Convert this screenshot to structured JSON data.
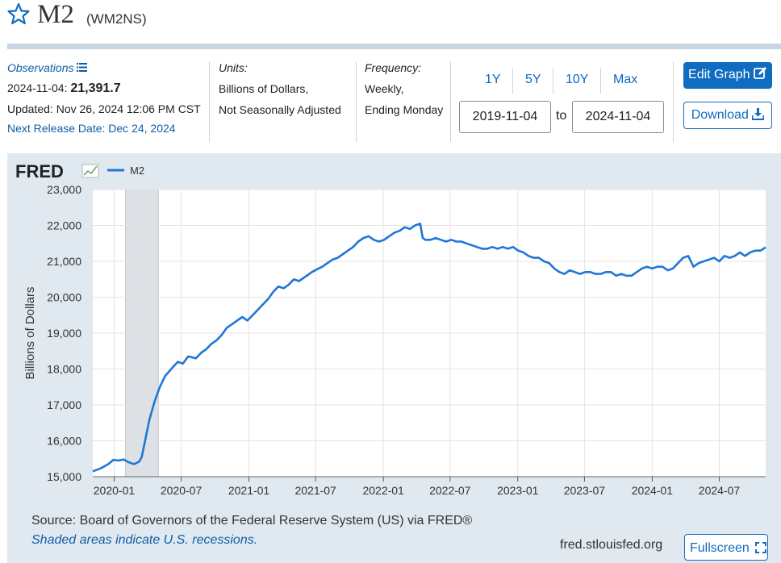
{
  "header": {
    "title": "M2",
    "code": "(WM2NS)"
  },
  "meta": {
    "observations_label": "Observations",
    "obs_date": "2024-11-04:",
    "obs_value": "21,391.7",
    "updated": "Updated: Nov 26, 2024 12:06 PM CST",
    "next_release": "Next Release Date: Dec 24, 2024",
    "units_label": "Units:",
    "units_line1": "Billions of Dollars,",
    "units_line2": "Not Seasonally Adjusted",
    "frequency_label": "Frequency:",
    "frequency_line1": "Weekly,",
    "frequency_line2": "Ending Monday"
  },
  "controls": {
    "range_buttons": [
      "1Y",
      "5Y",
      "10Y",
      "Max"
    ],
    "start_date": "2019-11-04",
    "to_label": "to",
    "end_date": "2024-11-04",
    "edit_graph": "Edit Graph",
    "download": "Download",
    "fullscreen": "Fullscreen"
  },
  "footer": {
    "source": "Source: Board of Governors of the Federal Reserve System (US) via FRED®",
    "shaded_note": "Shaded areas indicate U.S. recessions.",
    "site": "fred.stlouisfed.org"
  },
  "colors": {
    "series": "#1f77d6",
    "accent": "#0f6cc1",
    "panel_bg": "#e1e9f0",
    "recession": "#dde1e5"
  },
  "chart_data": {
    "type": "line",
    "logo_text": "FRED",
    "ylabel": "Billions of Dollars",
    "xlabel": "",
    "ylim": [
      15000,
      23000
    ],
    "yticks": [
      15000,
      16000,
      17000,
      18000,
      19000,
      20000,
      21000,
      22000,
      23000
    ],
    "ytick_labels": [
      "15,000",
      "16,000",
      "17,000",
      "18,000",
      "19,000",
      "20,000",
      "21,000",
      "22,000",
      "23,000"
    ],
    "xlim": [
      "2019-11-04",
      "2024-11-04"
    ],
    "xtick_labels": [
      "2020-01",
      "2020-07",
      "2021-01",
      "2021-07",
      "2022-01",
      "2022-07",
      "2023-01",
      "2023-07",
      "2024-01",
      "2024-07"
    ],
    "xtick_dates": [
      "2020-01-01",
      "2020-07-01",
      "2021-01-01",
      "2021-07-01",
      "2022-01-01",
      "2022-07-01",
      "2023-01-01",
      "2023-07-01",
      "2024-01-01",
      "2024-07-01"
    ],
    "grid": true,
    "recessions": [
      {
        "start": "2020-02-01",
        "end": "2020-04-30"
      }
    ],
    "series": [
      {
        "name": "M2",
        "x": [
          "2019-11-04",
          "2019-11-25",
          "2019-12-16",
          "2019-12-30",
          "2020-01-13",
          "2020-01-27",
          "2020-02-10",
          "2020-02-24",
          "2020-03-09",
          "2020-03-16",
          "2020-03-23",
          "2020-04-06",
          "2020-04-20",
          "2020-05-04",
          "2020-05-18",
          "2020-06-08",
          "2020-06-22",
          "2020-07-06",
          "2020-07-20",
          "2020-08-10",
          "2020-08-24",
          "2020-09-07",
          "2020-09-21",
          "2020-10-05",
          "2020-10-19",
          "2020-11-02",
          "2020-11-16",
          "2020-11-30",
          "2020-12-14",
          "2020-12-28",
          "2021-01-11",
          "2021-01-25",
          "2021-02-08",
          "2021-02-22",
          "2021-03-08",
          "2021-03-22",
          "2021-04-05",
          "2021-04-19",
          "2021-05-03",
          "2021-05-17",
          "2021-06-07",
          "2021-06-21",
          "2021-07-05",
          "2021-07-19",
          "2021-08-02",
          "2021-08-16",
          "2021-08-30",
          "2021-09-13",
          "2021-09-27",
          "2021-10-11",
          "2021-10-25",
          "2021-11-08",
          "2021-11-22",
          "2021-12-06",
          "2021-12-20",
          "2022-01-03",
          "2022-01-17",
          "2022-01-31",
          "2022-02-14",
          "2022-02-28",
          "2022-03-14",
          "2022-03-28",
          "2022-04-11",
          "2022-04-18",
          "2022-04-25",
          "2022-05-09",
          "2022-05-23",
          "2022-06-06",
          "2022-06-20",
          "2022-07-04",
          "2022-07-18",
          "2022-08-01",
          "2022-08-15",
          "2022-08-29",
          "2022-09-12",
          "2022-09-26",
          "2022-10-10",
          "2022-10-24",
          "2022-11-07",
          "2022-11-21",
          "2022-12-05",
          "2022-12-19",
          "2023-01-02",
          "2023-01-16",
          "2023-01-30",
          "2023-02-13",
          "2023-02-27",
          "2023-03-13",
          "2023-03-27",
          "2023-04-10",
          "2023-04-24",
          "2023-05-08",
          "2023-05-22",
          "2023-06-05",
          "2023-06-19",
          "2023-07-03",
          "2023-07-17",
          "2023-07-31",
          "2023-08-14",
          "2023-08-28",
          "2023-09-11",
          "2023-09-25",
          "2023-10-09",
          "2023-10-23",
          "2023-11-06",
          "2023-11-20",
          "2023-12-04",
          "2023-12-18",
          "2024-01-01",
          "2024-01-15",
          "2024-01-29",
          "2024-02-12",
          "2024-02-26",
          "2024-03-11",
          "2024-03-25",
          "2024-04-08",
          "2024-04-22",
          "2024-05-06",
          "2024-05-20",
          "2024-06-03",
          "2024-06-17",
          "2024-07-01",
          "2024-07-15",
          "2024-07-29",
          "2024-08-12",
          "2024-08-26",
          "2024-09-09",
          "2024-09-23",
          "2024-10-07",
          "2024-10-21",
          "2024-11-04"
        ],
        "values": [
          15150,
          15230,
          15350,
          15470,
          15450,
          15480,
          15400,
          15350,
          15420,
          15550,
          15900,
          16600,
          17100,
          17500,
          17800,
          18050,
          18200,
          18150,
          18350,
          18300,
          18450,
          18550,
          18700,
          18800,
          18950,
          19150,
          19250,
          19350,
          19450,
          19350,
          19500,
          19650,
          19800,
          19950,
          20150,
          20300,
          20250,
          20350,
          20500,
          20450,
          20600,
          20700,
          20780,
          20850,
          20950,
          21050,
          21100,
          21200,
          21300,
          21400,
          21550,
          21650,
          21700,
          21600,
          21550,
          21600,
          21700,
          21800,
          21850,
          21950,
          21900,
          22000,
          22050,
          21650,
          21600,
          21600,
          21650,
          21600,
          21550,
          21600,
          21550,
          21550,
          21500,
          21450,
          21400,
          21350,
          21350,
          21400,
          21350,
          21400,
          21350,
          21400,
          21300,
          21250,
          21150,
          21100,
          21100,
          21000,
          20950,
          20800,
          20700,
          20650,
          20750,
          20700,
          20650,
          20700,
          20700,
          20650,
          20650,
          20700,
          20700,
          20600,
          20650,
          20600,
          20600,
          20700,
          20800,
          20850,
          20800,
          20850,
          20850,
          20750,
          20800,
          20950,
          21100,
          21150,
          20850,
          20950,
          21000,
          21050,
          21100,
          21000,
          21150,
          21100,
          21150,
          21250,
          21150,
          21250,
          21300,
          21300,
          21391.7
        ]
      }
    ]
  }
}
